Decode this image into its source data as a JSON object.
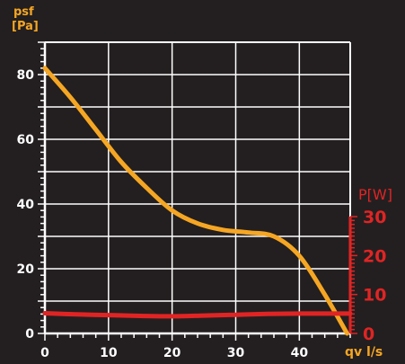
{
  "chart_data": {
    "type": "line",
    "xlabel": "qv l/s",
    "ylabel_line1": "psf",
    "ylabel_line2": "[Pa]",
    "y2label": "P[W]",
    "xlim": [
      0,
      48
    ],
    "ylim": [
      0,
      90
    ],
    "y2lim": [
      0,
      30
    ],
    "x_ticks": [
      0,
      10,
      20,
      30,
      40
    ],
    "x_tick_labels": [
      "0",
      "10",
      "20",
      "30",
      "40"
    ],
    "y_ticks": [
      0,
      20,
      40,
      60,
      80
    ],
    "y_tick_labels": [
      "0",
      "20",
      "40",
      "60",
      "80"
    ],
    "y2_ticks": [
      0,
      10,
      20,
      30
    ],
    "y2_tick_labels": [
      "0",
      "10",
      "20",
      "30"
    ],
    "grid": true,
    "series": [
      {
        "axis": "left",
        "color": "#f5a623",
        "x": [
          0,
          4,
          8,
          12,
          16,
          20,
          24,
          28,
          32,
          36,
          40,
          44,
          47.5
        ],
        "y": [
          82,
          73,
          63,
          53,
          45,
          38,
          34,
          32,
          31.2,
          30,
          24,
          12,
          0
        ]
      },
      {
        "axis": "right",
        "color": "#e02424",
        "x": [
          0,
          5,
          10,
          15,
          20,
          25,
          30,
          35,
          40,
          45,
          48
        ],
        "y": [
          5.2,
          4.9,
          4.7,
          4.5,
          4.4,
          4.6,
          4.8,
          5.0,
          5.1,
          5.1,
          5.1
        ]
      }
    ]
  }
}
